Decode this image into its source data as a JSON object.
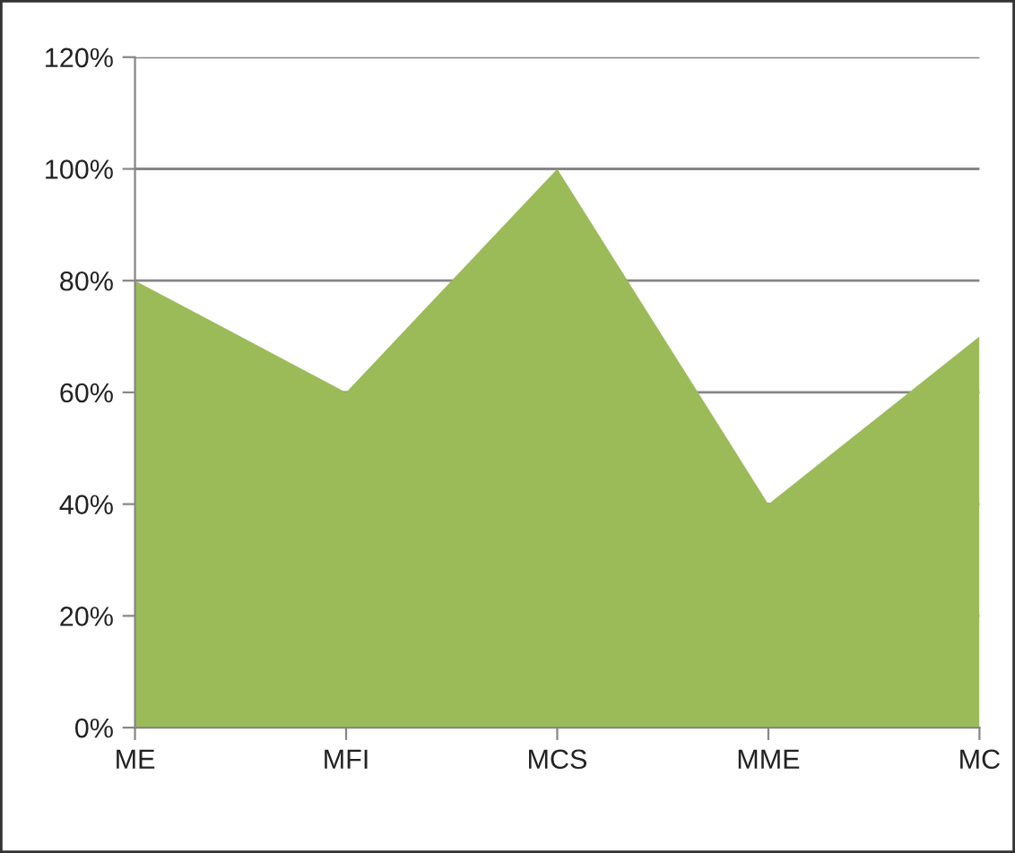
{
  "chart_data": {
    "type": "area",
    "categories": [
      "ME",
      "MFI",
      "MCS",
      "MME",
      "MC"
    ],
    "series": [
      {
        "color": "#9bbb59",
        "values": [
          80,
          60,
          100,
          40,
          70
        ]
      }
    ],
    "ylim": [
      0,
      120
    ],
    "yticks": [
      {
        "value": 0,
        "label": "0%"
      },
      {
        "value": 20,
        "label": "20%"
      },
      {
        "value": 40,
        "label": "40%"
      },
      {
        "value": 60,
        "label": "60%"
      },
      {
        "value": 80,
        "label": "80%"
      },
      {
        "value": 100,
        "label": "100%"
      },
      {
        "value": 120,
        "label": "120%"
      }
    ],
    "grid": "y",
    "legend": false
  }
}
